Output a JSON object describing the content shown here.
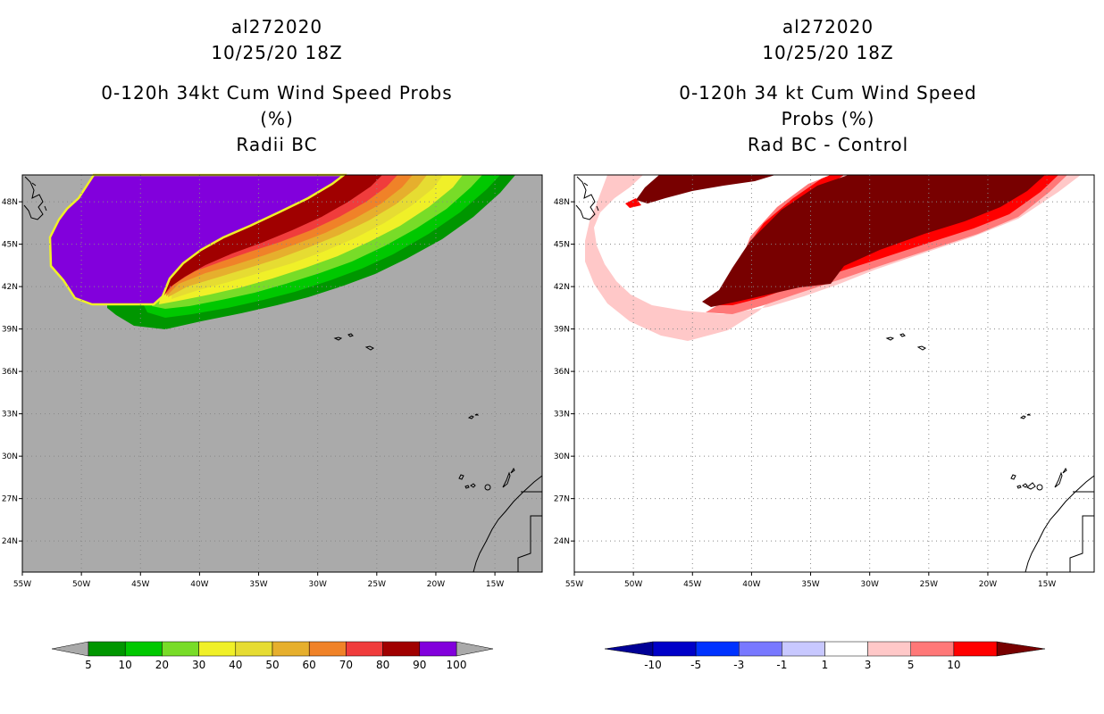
{
  "left_panel": {
    "title_lines": [
      "al272020",
      "10/25/20 18Z",
      "0-120h 34kt Cum Wind Speed Probs (%)",
      "Radii BC"
    ]
  },
  "right_panel": {
    "title_lines": [
      "al272020",
      "10/25/20 18Z",
      "0-120h 34 kt Cum Wind Speed Probs (%)",
      "Rad BC - Control"
    ]
  },
  "axes": {
    "lon_labels": [
      "55W",
      "50W",
      "45W",
      "40W",
      "35W",
      "30W",
      "25W",
      "20W",
      "15W"
    ],
    "lon_values": [
      -55,
      -50,
      -45,
      -40,
      -35,
      -30,
      -25,
      -20,
      -15
    ],
    "lat_labels": [
      "24N",
      "27N",
      "30N",
      "33N",
      "36N",
      "39N",
      "42N",
      "45N",
      "48N"
    ],
    "lat_values": [
      24,
      27,
      30,
      33,
      36,
      39,
      42,
      45,
      48
    ],
    "lon_range": [
      -55,
      -11
    ],
    "lat_range": [
      21.8,
      49.9
    ]
  },
  "colors": {
    "land_background": "#aaaaaa",
    "prob_fill": [
      "#009600",
      "#00c800",
      "#78dc28",
      "#f0f028",
      "#e6dc32",
      "#e6af2d",
      "#f08228",
      "#f03c3c",
      "#a00000",
      "#8200dc"
    ],
    "diff_fill": [
      "#0000c8",
      "#0032ff",
      "#7878ff",
      "#c8c8ff",
      "#ffffff",
      "#ffc8c8",
      "#ff7878",
      "#ff0000",
      "#780000"
    ]
  },
  "chart_data": [
    {
      "type": "heatmap",
      "title": "0-120h 34kt Cum Wind Speed Probs (%)",
      "subtitle": "Radii BC",
      "colorbar": {
        "labels": [
          "5",
          "10",
          "20",
          "30",
          "40",
          "50",
          "60",
          "70",
          "80",
          "90",
          "100"
        ],
        "values": [
          5,
          10,
          20,
          30,
          40,
          50,
          60,
          70,
          80,
          90,
          100
        ],
        "colors": [
          "#009600",
          "#00c800",
          "#78dc28",
          "#f0f028",
          "#e6dc32",
          "#e6af2d",
          "#f08228",
          "#f03c3c",
          "#a00000",
          "#8200dc"
        ],
        "under_color": "#aaaaaa",
        "over_color": "#aaaaaa"
      }
    },
    {
      "type": "heatmap",
      "title": "0-120h 34 kt Cum Wind Speed Probs (%)",
      "subtitle": "Rad BC - Control",
      "colorbar": {
        "labels": [
          "-10",
          "-5",
          "-3",
          "-1",
          "1",
          "3",
          "5",
          "10"
        ],
        "values": [
          -10,
          -5,
          -3,
          -1,
          1,
          3,
          5,
          10
        ],
        "colors": [
          "#0000c8",
          "#0032ff",
          "#7878ff",
          "#c8c8ff",
          "#ffffff",
          "#ffc8c8",
          "#ff7878",
          "#ff0000"
        ],
        "under_color": "#000096",
        "over_color": "#780000"
      }
    }
  ]
}
